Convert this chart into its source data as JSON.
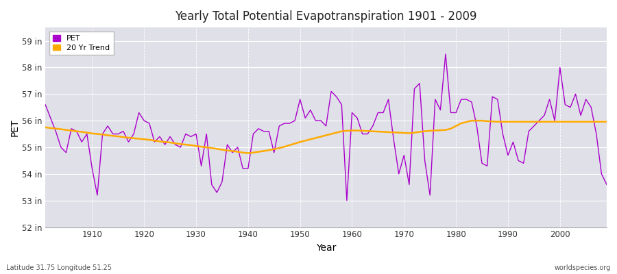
{
  "title": "Yearly Total Potential Evapotranspiration 1901 - 2009",
  "xlabel": "Year",
  "ylabel": "PET",
  "footnote_left": "Latitude 31.75 Longitude 51.25",
  "footnote_right": "worldspecies.org",
  "pet_color": "#aa00cc",
  "trend_color": "#ffaa00",
  "fig_bg_color": "#ffffff",
  "plot_bg_color": "#e0e0e8",
  "ylim": [
    52,
    59.5
  ],
  "xlim": [
    1901,
    2009
  ],
  "yticks": [
    52,
    53,
    54,
    55,
    56,
    57,
    58,
    59
  ],
  "ytick_labels": [
    "52 in",
    "53 in",
    "54 in",
    "55 in",
    "56 in",
    "57 in",
    "58 in",
    "59 in"
  ],
  "xticks": [
    1910,
    1920,
    1930,
    1940,
    1950,
    1960,
    1970,
    1980,
    1990,
    2000
  ],
  "years": [
    1901,
    1902,
    1903,
    1904,
    1905,
    1906,
    1907,
    1908,
    1909,
    1910,
    1911,
    1912,
    1913,
    1914,
    1915,
    1916,
    1917,
    1918,
    1919,
    1920,
    1921,
    1922,
    1923,
    1924,
    1925,
    1926,
    1927,
    1928,
    1929,
    1930,
    1931,
    1932,
    1933,
    1934,
    1935,
    1936,
    1937,
    1938,
    1939,
    1940,
    1941,
    1942,
    1943,
    1944,
    1945,
    1946,
    1947,
    1948,
    1949,
    1950,
    1951,
    1952,
    1953,
    1954,
    1955,
    1956,
    1957,
    1958,
    1959,
    1960,
    1961,
    1962,
    1963,
    1964,
    1965,
    1966,
    1967,
    1968,
    1969,
    1970,
    1971,
    1972,
    1973,
    1974,
    1975,
    1976,
    1977,
    1978,
    1979,
    1980,
    1981,
    1982,
    1983,
    1984,
    1985,
    1986,
    1987,
    1988,
    1989,
    1990,
    1991,
    1992,
    1993,
    1994,
    1995,
    1996,
    1997,
    1998,
    1999,
    2000,
    2001,
    2002,
    2003,
    2004,
    2005,
    2006,
    2007,
    2008,
    2009
  ],
  "pet_values": [
    56.6,
    56.1,
    55.6,
    55.0,
    54.8,
    55.7,
    55.6,
    55.2,
    55.5,
    54.2,
    53.2,
    55.5,
    55.8,
    55.5,
    55.5,
    55.6,
    55.2,
    55.5,
    56.3,
    56.0,
    55.9,
    55.2,
    55.4,
    55.1,
    55.4,
    55.1,
    55.0,
    55.5,
    55.4,
    55.5,
    54.3,
    55.5,
    53.6,
    53.3,
    53.7,
    55.1,
    54.8,
    55.0,
    54.2,
    54.2,
    55.5,
    55.7,
    55.6,
    55.6,
    54.8,
    55.8,
    55.9,
    55.9,
    56.0,
    56.8,
    56.1,
    56.4,
    56.0,
    56.0,
    55.8,
    57.1,
    56.9,
    56.6,
    53.0,
    56.3,
    56.1,
    55.5,
    55.5,
    55.8,
    56.3,
    56.3,
    56.8,
    55.3,
    54.0,
    54.7,
    53.6,
    57.2,
    57.4,
    54.5,
    53.2,
    56.8,
    56.4,
    58.5,
    56.3,
    56.3,
    56.8,
    56.8,
    56.7,
    55.8,
    54.4,
    54.3,
    56.9,
    56.8,
    55.5,
    54.7,
    55.2,
    54.5,
    54.4,
    55.6,
    55.8,
    56.0,
    56.2,
    56.8,
    56.0,
    58.0,
    56.6,
    56.5,
    57.0,
    56.2,
    56.8,
    56.5,
    55.5,
    54.0,
    53.6
  ],
  "trend_values": [
    55.75,
    55.72,
    55.7,
    55.68,
    55.65,
    55.63,
    55.6,
    55.58,
    55.55,
    55.52,
    55.5,
    55.48,
    55.45,
    55.43,
    55.41,
    55.38,
    55.36,
    55.34,
    55.32,
    55.3,
    55.28,
    55.25,
    55.22,
    55.2,
    55.18,
    55.15,
    55.12,
    55.1,
    55.08,
    55.05,
    55.02,
    55.0,
    54.97,
    54.94,
    54.91,
    54.88,
    54.86,
    54.83,
    54.8,
    54.78,
    54.8,
    54.83,
    54.86,
    54.89,
    54.93,
    54.97,
    55.02,
    55.08,
    55.14,
    55.2,
    55.25,
    55.3,
    55.35,
    55.4,
    55.45,
    55.5,
    55.55,
    55.6,
    55.62,
    55.63,
    55.63,
    55.62,
    55.61,
    55.6,
    55.59,
    55.58,
    55.57,
    55.56,
    55.55,
    55.54,
    55.53,
    55.55,
    55.58,
    55.6,
    55.62,
    55.63,
    55.64,
    55.65,
    55.7,
    55.8,
    55.9,
    55.95,
    56.0,
    56.0,
    56.0,
    55.98,
    55.97,
    55.96,
    55.96,
    55.96,
    55.96,
    55.96,
    55.96,
    55.96,
    55.96,
    55.96,
    55.96,
    55.96,
    55.96,
    55.96,
    55.96,
    55.96,
    55.96,
    55.96,
    55.96,
    55.96,
    55.96,
    55.96,
    55.96
  ]
}
